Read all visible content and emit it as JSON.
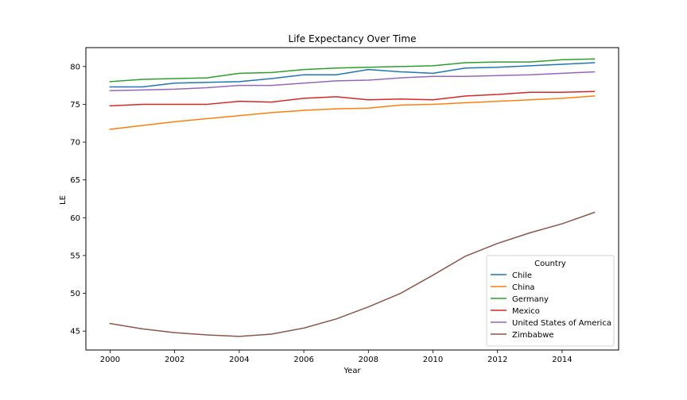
{
  "chart_data": {
    "type": "line",
    "title": "Life Expectancy Over Time",
    "xlabel": "Year",
    "ylabel": "LE",
    "xlim": [
      1999.25,
      2015.75
    ],
    "ylim": [
      42.5,
      82.5
    ],
    "xticks": [
      2000,
      2002,
      2004,
      2006,
      2008,
      2010,
      2012,
      2014
    ],
    "yticks": [
      45,
      50,
      55,
      60,
      65,
      70,
      75,
      80
    ],
    "grid": false,
    "legend": {
      "title": "Country",
      "placement": "lower-right"
    },
    "x": [
      2000,
      2001,
      2002,
      2003,
      2004,
      2005,
      2006,
      2007,
      2008,
      2009,
      2010,
      2011,
      2012,
      2013,
      2014,
      2015
    ],
    "series": [
      {
        "name": "Chile",
        "color": "#1f77b4",
        "values": [
          77.3,
          77.3,
          77.8,
          77.9,
          78.0,
          78.4,
          78.9,
          78.9,
          79.6,
          79.3,
          79.1,
          79.8,
          79.9,
          80.1,
          80.3,
          80.5
        ]
      },
      {
        "name": "China",
        "color": "#ff7f0e",
        "values": [
          71.7,
          72.2,
          72.7,
          73.1,
          73.5,
          73.9,
          74.2,
          74.4,
          74.5,
          74.9,
          75.0,
          75.2,
          75.4,
          75.6,
          75.8,
          76.1
        ]
      },
      {
        "name": "Germany",
        "color": "#2ca02c",
        "values": [
          78.0,
          78.3,
          78.4,
          78.5,
          79.1,
          79.2,
          79.6,
          79.8,
          79.9,
          80.0,
          80.1,
          80.5,
          80.6,
          80.6,
          80.9,
          81.0
        ]
      },
      {
        "name": "Mexico",
        "color": "#d62728",
        "values": [
          74.8,
          75.0,
          75.0,
          75.0,
          75.4,
          75.3,
          75.8,
          76.0,
          75.6,
          75.7,
          75.6,
          76.1,
          76.3,
          76.6,
          76.6,
          76.7
        ]
      },
      {
        "name": "United States of America",
        "color": "#9467bd",
        "values": [
          76.8,
          76.9,
          77.0,
          77.2,
          77.5,
          77.5,
          77.8,
          78.1,
          78.2,
          78.5,
          78.7,
          78.7,
          78.8,
          78.9,
          79.1,
          79.3
        ]
      },
      {
        "name": "Zimbabwe",
        "color": "#8c564b",
        "values": [
          46.0,
          45.3,
          44.8,
          44.5,
          44.3,
          44.6,
          45.4,
          46.6,
          48.2,
          50.0,
          52.4,
          54.9,
          56.6,
          58.0,
          59.2,
          60.7
        ]
      }
    ]
  }
}
